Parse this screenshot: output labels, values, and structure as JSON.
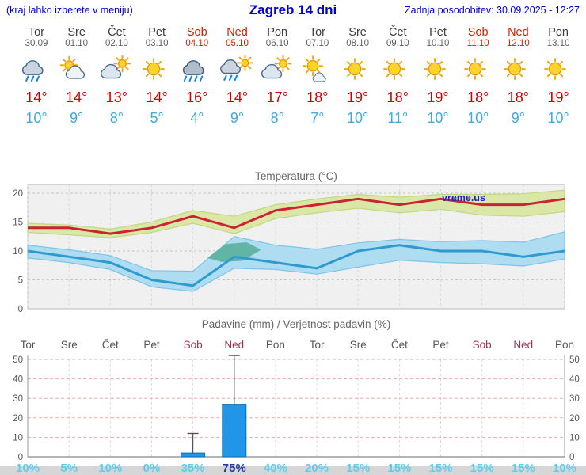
{
  "header": {
    "hint": "(kraj lahko izberete v meniju)",
    "title": "Zagreb 14 dni",
    "updated": "Zadnja posodobitev: 30.09.2025 - 12:27"
  },
  "watermark": "vreme.us",
  "colors": {
    "header_blue": "#0000cc",
    "weekend_red": "#cc2200",
    "chart_weekend_red": "#a03050",
    "high_temp_red": "#cc0000",
    "low_temp_blue": "#3fa9e0",
    "max_line": "#cc2233",
    "min_line": "#2f9ad0",
    "band_yellow": "#dbe7a6",
    "band_yellow_edge": "#c3d77e",
    "band_blue": "#aedcf0",
    "band_blue_edge": "#7cc4e8",
    "overlap_teal": "#62b5a4",
    "bar_fill": "#2196e8",
    "bar_edge": "#0f6fae",
    "whisker": "#555555",
    "grid_gray": "#c4c4c4",
    "grid_pink": "#eeaaaa",
    "axis_text": "#555555",
    "title_text": "#666666",
    "prob_cyan": "#5bcdf0",
    "prob_highlight": "#223a9e",
    "watermark_blue": "#2222cc"
  },
  "forecast": {
    "days": [
      {
        "name": "Tor",
        "date": "30.09",
        "weekend": false,
        "icon": "showers",
        "high": "14°",
        "low": "10°"
      },
      {
        "name": "Sre",
        "date": "01.10",
        "weekend": false,
        "icon": "partly-cloudy",
        "high": "14°",
        "low": "9°"
      },
      {
        "name": "Čet",
        "date": "02.10",
        "weekend": false,
        "icon": "mostly-cloudy",
        "high": "13°",
        "low": "8°"
      },
      {
        "name": "Pet",
        "date": "03.10",
        "weekend": false,
        "icon": "sunny",
        "high": "14°",
        "low": "5°"
      },
      {
        "name": "Sob",
        "date": "04.10",
        "weekend": true,
        "icon": "rain",
        "high": "16°",
        "low": "4°"
      },
      {
        "name": "Ned",
        "date": "05.10",
        "weekend": true,
        "icon": "sun-showers",
        "high": "14°",
        "low": "9°"
      },
      {
        "name": "Pon",
        "date": "06.10",
        "weekend": false,
        "icon": "mostly-cloudy",
        "high": "17°",
        "low": "8°"
      },
      {
        "name": "Tor",
        "date": "07.10",
        "weekend": false,
        "icon": "mostly-sunny",
        "high": "18°",
        "low": "7°"
      },
      {
        "name": "Sre",
        "date": "08.10",
        "weekend": false,
        "icon": "sunny",
        "high": "19°",
        "low": "10°"
      },
      {
        "name": "Čet",
        "date": "09.10",
        "weekend": false,
        "icon": "sunny",
        "high": "18°",
        "low": "11°"
      },
      {
        "name": "Pet",
        "date": "10.10",
        "weekend": false,
        "icon": "sunny",
        "high": "19°",
        "low": "10°"
      },
      {
        "name": "Sob",
        "date": "11.10",
        "weekend": true,
        "icon": "sunny",
        "high": "18°",
        "low": "10°"
      },
      {
        "name": "Ned",
        "date": "12.10",
        "weekend": true,
        "icon": "sunny",
        "high": "18°",
        "low": "9°"
      },
      {
        "name": "Pon",
        "date": "13.10",
        "weekend": false,
        "icon": "sunny",
        "high": "19°",
        "low": "10°"
      }
    ]
  },
  "chart_data": [
    {
      "type": "line",
      "title": "Temperatura (°C)",
      "x_labels": [
        "Tor",
        "Sre",
        "Čet",
        "Pet",
        "Sob",
        "Ned",
        "Pon",
        "Tor",
        "Sre",
        "Čet",
        "Pet",
        "Sob",
        "Ned",
        "Pon"
      ],
      "ylim": [
        0,
        21
      ],
      "yticks": [
        0,
        5,
        10,
        15,
        20
      ],
      "grid": true,
      "legend": "none",
      "series": [
        {
          "name": "max_temp",
          "values": [
            14,
            14,
            13,
            14,
            16,
            14,
            17,
            18,
            19,
            18,
            19,
            18,
            18,
            19
          ]
        },
        {
          "name": "min_temp",
          "values": [
            10,
            9,
            8,
            5,
            4,
            9,
            8,
            7,
            10,
            11,
            10,
            10,
            9,
            10
          ]
        },
        {
          "name": "max_range_upper",
          "values": [
            14.8,
            14.5,
            13.8,
            15,
            17,
            16,
            18,
            19,
            19.8,
            19.3,
            19.8,
            19.8,
            19.9,
            20.5
          ]
        },
        {
          "name": "max_range_lower",
          "values": [
            13.2,
            12.8,
            12.3,
            13.2,
            14.8,
            13,
            15.6,
            16.6,
            17.4,
            16.6,
            17.2,
            16.2,
            16,
            16.8
          ]
        },
        {
          "name": "min_range_upper",
          "values": [
            11,
            10.2,
            9.2,
            6.6,
            6.5,
            12.5,
            11,
            10.3,
            11.4,
            12,
            11.6,
            11.8,
            11.5,
            13.3
          ]
        },
        {
          "name": "min_range_lower",
          "values": [
            8.8,
            8,
            6.8,
            3.8,
            3,
            7,
            6.8,
            6,
            7.2,
            8.4,
            8,
            7.8,
            7.4,
            8.6
          ]
        }
      ],
      "overlap_polygon": [
        [
          4.35,
          8.8
        ],
        [
          4.8,
          11.2
        ],
        [
          5.3,
          11.5
        ],
        [
          5.65,
          10.2
        ],
        [
          5.2,
          8.3
        ],
        [
          4.7,
          8.1
        ]
      ]
    },
    {
      "type": "bar",
      "title": "Padavine (mm) / Verjetnost padavin (%)",
      "categories": [
        "Tor",
        "Sre",
        "Čet",
        "Pet",
        "Sob",
        "Ned",
        "Pon",
        "Tor",
        "Sre",
        "Čet",
        "Pet",
        "Sob",
        "Ned",
        "Pon"
      ],
      "weekend_flags": [
        false,
        false,
        false,
        false,
        true,
        true,
        false,
        false,
        false,
        false,
        false,
        true,
        true,
        false
      ],
      "values_mm": [
        0,
        0,
        0,
        0,
        2,
        27,
        0,
        0,
        0,
        0,
        0,
        0,
        0,
        0
      ],
      "whisker_max_mm": [
        0,
        0,
        0,
        0,
        12,
        52,
        0,
        0,
        0,
        0,
        0,
        0,
        0,
        0
      ],
      "probabilities": [
        "10%",
        "5%",
        "10%",
        "0%",
        "35%",
        "75%",
        "40%",
        "20%",
        "15%",
        "15%",
        "15%",
        "15%",
        "15%",
        "10%"
      ],
      "highlight_index": 5,
      "ylim": [
        0,
        50
      ],
      "yticks": [
        0,
        10,
        20,
        30,
        40,
        50
      ]
    }
  ]
}
